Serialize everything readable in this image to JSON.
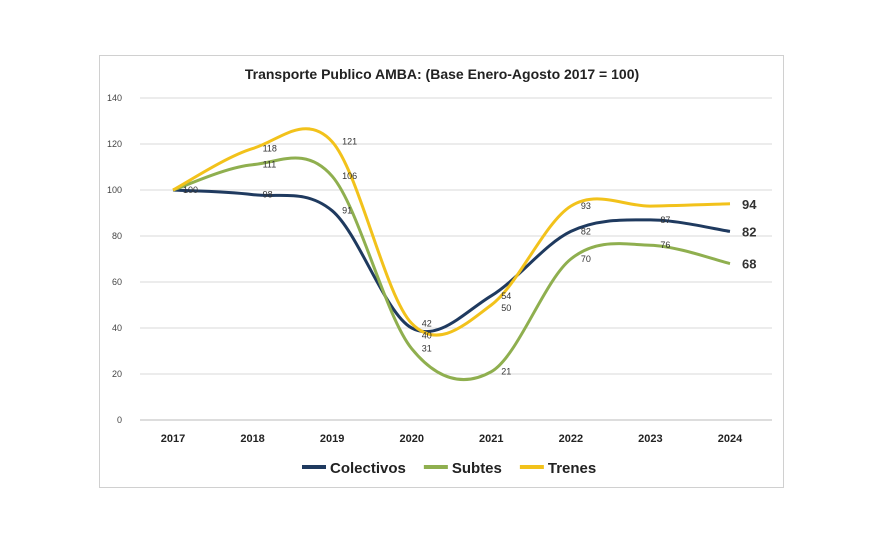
{
  "chart_data": {
    "type": "line",
    "title": "Transporte Publico AMBA: (Base Enero-Agosto 2017 = 100)",
    "x": [
      "2017",
      "2018",
      "2019",
      "2020",
      "2021",
      "2022",
      "2023",
      "2024"
    ],
    "ylim": [
      0,
      140
    ],
    "yticks": [
      0,
      20,
      40,
      60,
      80,
      100,
      120,
      140
    ],
    "grid": true,
    "legend": "bottom",
    "series": [
      {
        "name": "Colectivos",
        "color": "#1f3a5f",
        "values": [
          100,
          98,
          91,
          40,
          54,
          82,
          87,
          82
        ],
        "labels": [
          "100",
          "98",
          "91",
          "40",
          "54",
          "82",
          "87",
          "82"
        ]
      },
      {
        "name": "Subtes",
        "color": "#8faf4f",
        "values": [
          100,
          111,
          106,
          31,
          21,
          70,
          76,
          68
        ],
        "labels": [
          "",
          "111",
          "106",
          "31",
          "21",
          "70",
          "76",
          "68"
        ]
      },
      {
        "name": "Trenes",
        "color": "#f2c21b",
        "values": [
          100,
          118,
          121,
          42,
          50,
          93,
          93,
          94
        ],
        "labels": [
          "",
          "118",
          "121",
          "42",
          "50",
          "93",
          "",
          "94"
        ]
      }
    ]
  }
}
